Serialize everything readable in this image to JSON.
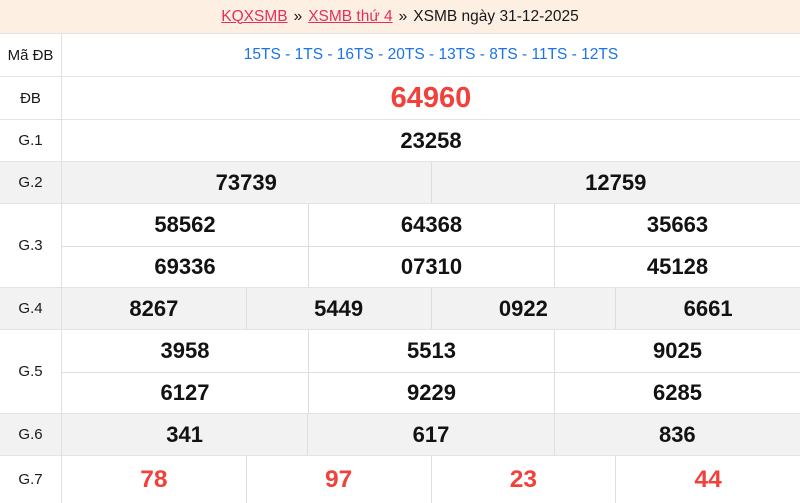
{
  "breadcrumb": {
    "link1": "KQXSMB",
    "sep1": "»",
    "link2": "XSMB thứ 4",
    "sep2": "»",
    "current": "XSMB ngày 31-12-2025"
  },
  "colors": {
    "header_bg": "#fdf0e2",
    "alt_row_bg": "#f2f2f2",
    "border": "#e0e0e0",
    "link": "#e62e5c",
    "codes_blue": "#1a73e8",
    "special_red": "#f1413a"
  },
  "table": {
    "rows": {
      "ma_db": {
        "label": "Mã ĐB",
        "codes": "15TS - 1TS - 16TS - 20TS - 13TS - 8TS - 11TS - 12TS"
      },
      "db": {
        "label": "ĐB",
        "values": [
          "64960"
        ]
      },
      "g1": {
        "label": "G.1",
        "values": [
          "23258"
        ]
      },
      "g2": {
        "label": "G.2",
        "values": [
          "73739",
          "12759"
        ]
      },
      "g3": {
        "label": "G.3",
        "values": [
          "58562",
          "64368",
          "35663",
          "69336",
          "07310",
          "45128"
        ]
      },
      "g4": {
        "label": "G.4",
        "values": [
          "8267",
          "5449",
          "0922",
          "6661"
        ]
      },
      "g5": {
        "label": "G.5",
        "values": [
          "3958",
          "5513",
          "9025",
          "6127",
          "9229",
          "6285"
        ]
      },
      "g6": {
        "label": "G.6",
        "values": [
          "341",
          "617",
          "836"
        ]
      },
      "g7": {
        "label": "G.7",
        "values": [
          "78",
          "97",
          "23",
          "44"
        ]
      }
    }
  }
}
